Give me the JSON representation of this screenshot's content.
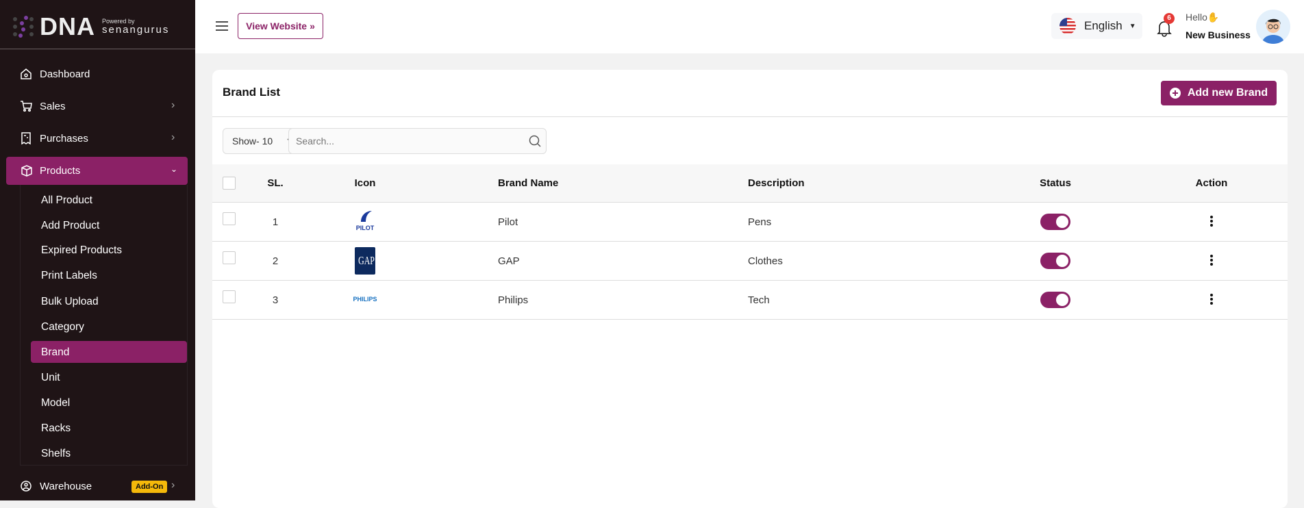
{
  "brand": {
    "name": "DNA",
    "powered_by": "Powered by",
    "company": "senangurus"
  },
  "sidebar": {
    "items": [
      {
        "label": "Dashboard",
        "icon": "home-icon"
      },
      {
        "label": "Sales",
        "icon": "cart-icon"
      },
      {
        "label": "Purchases",
        "icon": "receipt-icon"
      },
      {
        "label": "Products",
        "icon": "box-icon"
      },
      {
        "label": "Warehouse",
        "icon": "warehouse-icon",
        "badge": "Add-On"
      }
    ],
    "sub_items": [
      "All Product",
      "Add Product",
      "Expired Products",
      "Print Labels",
      "Bulk Upload",
      "Category",
      "Brand",
      "Unit",
      "Model",
      "Racks",
      "Shelfs"
    ],
    "active_sub": "Brand"
  },
  "header": {
    "view_website": "View Website",
    "language": "English",
    "notifications": "6",
    "greeting": "Hello",
    "user": "New Business"
  },
  "page": {
    "title": "Brand List",
    "add_button": "Add new Brand",
    "show": "Show- 10",
    "search_placeholder": "Search..."
  },
  "table": {
    "columns": [
      "SL.",
      "Icon",
      "Brand Name",
      "Description",
      "Status",
      "Action"
    ],
    "rows": [
      {
        "sl": "1",
        "logo": "PILOT",
        "name": "Pilot",
        "description": "Pens",
        "status": true
      },
      {
        "sl": "2",
        "logo": "GAP",
        "name": "GAP",
        "description": "Clothes",
        "status": true
      },
      {
        "sl": "3",
        "logo": "PHILIPS",
        "name": "Philips",
        "description": "Tech",
        "status": true
      }
    ]
  },
  "colors": {
    "accent": "#8b2166",
    "sidebar_bg": "#1f1416",
    "addon": "#f5b90a"
  }
}
